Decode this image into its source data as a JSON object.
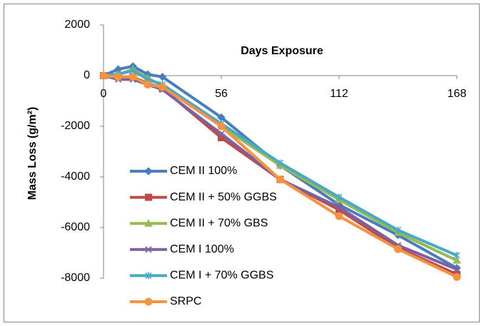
{
  "chart_data": {
    "type": "line",
    "x_axis_title": "Days Exposure",
    "y_axis_title": "Mass Loss (g/m²)",
    "x": [
      0,
      7,
      14,
      21,
      28,
      56,
      84,
      112,
      140,
      168
    ],
    "xlim": [
      0,
      168
    ],
    "xticks": [
      0,
      56,
      112,
      168
    ],
    "ylim": [
      -8000,
      2000
    ],
    "yticks": [
      -8000,
      -6000,
      -4000,
      -2000,
      0,
      2000
    ],
    "grid": false,
    "legend": "lower-left",
    "series": [
      {
        "name": "CEM II 100%",
        "color": "#4a7ebb",
        "marker": "diamond",
        "values": [
          0,
          250,
          370,
          50,
          -50,
          -1650,
          -3550,
          -5100,
          -6300,
          -7600
        ]
      },
      {
        "name": "CEM II + 50% GGBS",
        "color": "#be4b48",
        "marker": "square",
        "values": [
          0,
          -50,
          -50,
          -300,
          -500,
          -2450,
          -4100,
          -5300,
          -6800,
          -7850
        ]
      },
      {
        "name": "CEM II + 70% GBS",
        "color": "#98b954",
        "marker": "triangle",
        "values": [
          0,
          50,
          250,
          -100,
          -400,
          -2000,
          -3550,
          -4900,
          -6200,
          -7300
        ]
      },
      {
        "name": "CEM I 100%",
        "color": "#7d60a0",
        "marker": "x",
        "values": [
          0,
          -150,
          -150,
          -350,
          -550,
          -2300,
          -4100,
          -5200,
          -6700,
          -7650
        ]
      },
      {
        "name": "CEM I + 70% GGBS",
        "color": "#46aac5",
        "marker": "star",
        "values": [
          0,
          50,
          200,
          -150,
          -350,
          -1900,
          -3450,
          -4800,
          -6100,
          -7100
        ]
      },
      {
        "name": "SRPC",
        "color": "#f69240",
        "marker": "circle",
        "values": [
          0,
          -50,
          -50,
          -350,
          -450,
          -2000,
          -4100,
          -5550,
          -6850,
          -7950
        ]
      }
    ]
  }
}
